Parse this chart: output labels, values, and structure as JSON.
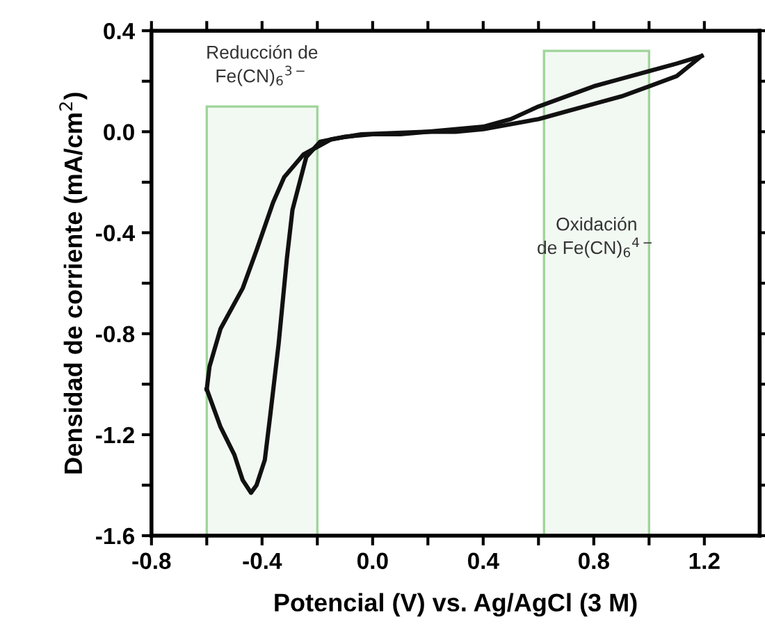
{
  "chart_data": {
    "type": "line",
    "xlabel": "Potencial (V) vs. Ag/AgCl (3 M)",
    "ylabel": "Densidad de corriente (mA/cm$^{2}$)",
    "series": [
      {
        "color": "#111111",
        "x": [
          1.19,
          1.1,
          1.0,
          0.9,
          0.8,
          0.7,
          0.6,
          0.5,
          0.4,
          0.3,
          0.2,
          0.1,
          0.0,
          -0.1,
          -0.19,
          -0.24,
          -0.29,
          -0.31,
          -0.34,
          -0.37,
          -0.39,
          -0.42,
          -0.44,
          -0.47,
          -0.5,
          -0.55,
          -0.6
        ],
        "values": [
          0.3,
          0.22,
          0.18,
          0.14,
          0.11,
          0.08,
          0.05,
          0.03,
          0.01,
          0.0,
          0.0,
          -0.01,
          -0.01,
          -0.02,
          -0.04,
          -0.1,
          -0.31,
          -0.5,
          -0.84,
          -1.12,
          -1.3,
          -1.4,
          -1.43,
          -1.38,
          -1.28,
          -1.17,
          -1.02
        ]
      },
      {
        "color": "#111111",
        "x": [
          -0.6,
          -0.59,
          -0.55,
          -0.47,
          -0.42,
          -0.36,
          -0.32,
          -0.25,
          -0.15,
          -0.04,
          0.2,
          0.4,
          0.5,
          0.6,
          0.7,
          0.8,
          0.9,
          1.0,
          1.1,
          1.19
        ],
        "values": [
          -1.02,
          -0.93,
          -0.78,
          -0.62,
          -0.47,
          -0.28,
          -0.18,
          -0.09,
          -0.03,
          -0.01,
          0.0,
          0.02,
          0.05,
          0.1,
          0.14,
          0.18,
          0.21,
          0.24,
          0.27,
          0.3
        ]
      }
    ],
    "xlim": [
      -0.8,
      1.4
    ],
    "ylim": [
      -1.6,
      0.4
    ],
    "xticks": [
      -0.8,
      {
        "value": -0.6,
        "label": null
      },
      -0.4,
      {
        "value": -0.2,
        "label": null
      },
      {
        "value": 0,
        "label": "0.0"
      },
      {
        "value": 0.2,
        "label": null
      },
      0.4,
      {
        "value": 0.6,
        "label": null
      },
      0.8,
      {
        "value": 1.0,
        "label": null
      },
      1.2
    ],
    "yticks": [
      -1.6,
      {
        "value": -1.4,
        "label": null
      },
      -1.2,
      {
        "value": -1.0,
        "label": null
      },
      -0.8,
      {
        "value": -0.6,
        "label": null
      },
      -0.4,
      {
        "value": -0.2,
        "label": null
      },
      {
        "value": 0,
        "label": "0.0"
      },
      {
        "value": 0.2,
        "label": null
      },
      0.4
    ],
    "bands": [
      {
        "axis": "x",
        "from": -0.6,
        "to": -0.2,
        "label": "Reducción de\nFe(CN)$_{6}$$^{3−}$",
        "color": "#9fd49a"
      },
      {
        "axis": "x",
        "from": 0.62,
        "to": 1.0,
        "label": "Oxidación\nde Fe(CN)$_{6}$$^{4−}$",
        "color": "#9fd49a"
      }
    ],
    "grid": false,
    "legend": false,
    "marker": "none",
    "line_style": "solid"
  }
}
